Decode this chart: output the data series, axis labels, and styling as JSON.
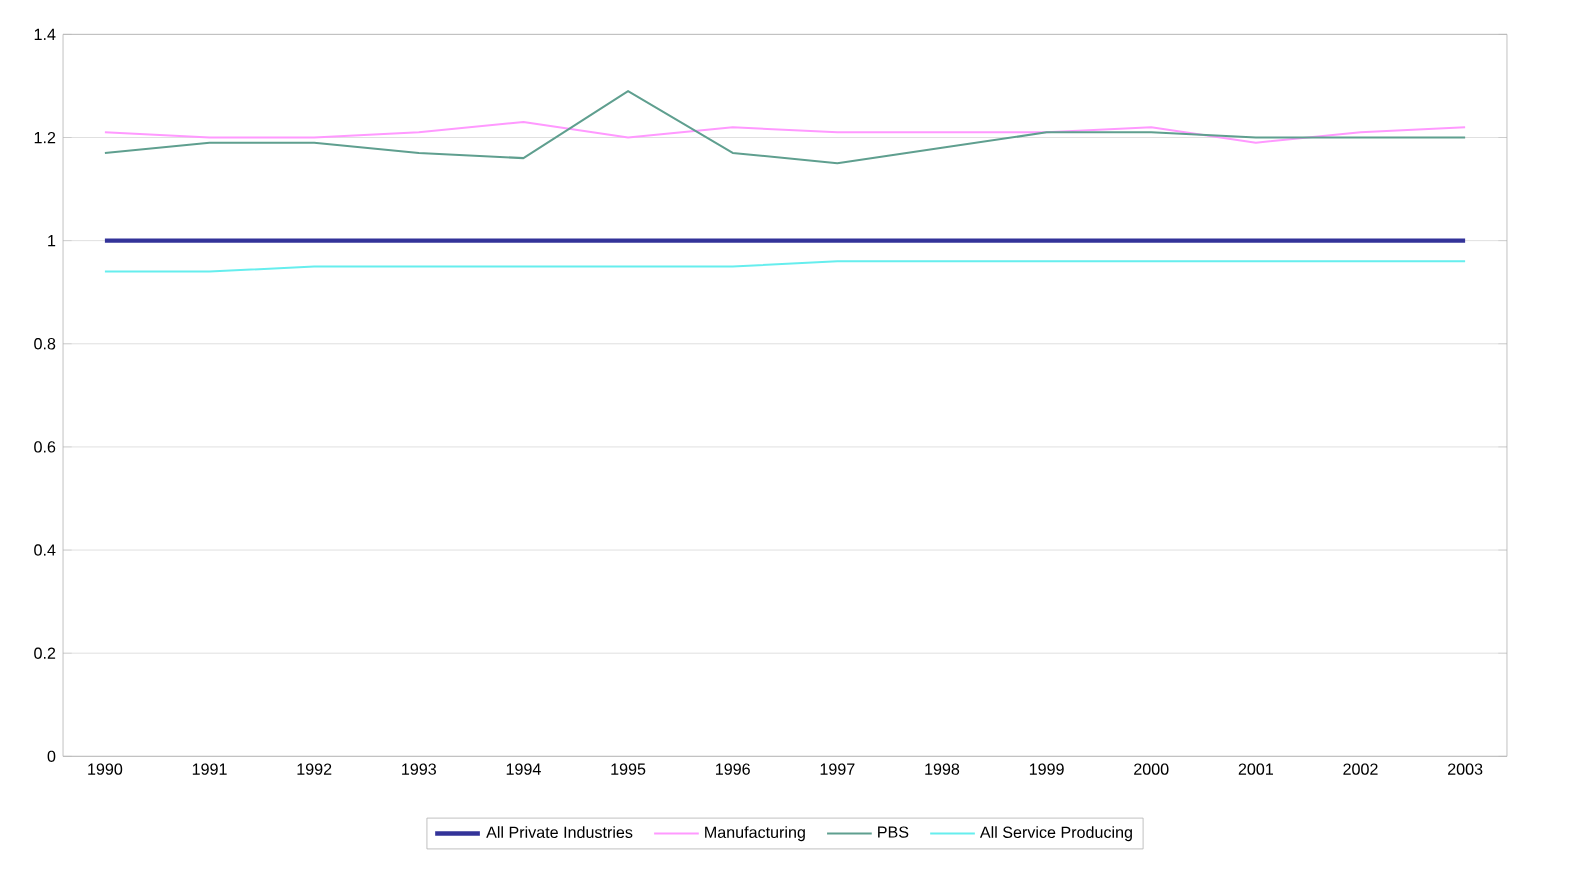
{
  "chart_data": {
    "type": "line",
    "categories": [
      "1990",
      "1991",
      "1992",
      "1993",
      "1994",
      "1995",
      "1996",
      "1997",
      "1998",
      "1999",
      "2000",
      "2001",
      "2002",
      "2003"
    ],
    "series": [
      {
        "name": "All Private Industries",
        "color": "#333399",
        "values": [
          1,
          1,
          1,
          1,
          1,
          1,
          1,
          1,
          1,
          1,
          1,
          1,
          1,
          1
        ]
      },
      {
        "name": "Manufacturing",
        "color": "#ff99ff",
        "values": [
          1.21,
          1.2,
          1.2,
          1.21,
          1.23,
          1.2,
          1.22,
          1.21,
          1.21,
          1.21,
          1.22,
          1.19,
          1.21,
          1.22
        ]
      },
      {
        "name": "PBS",
        "color": "#5f9f8f",
        "values": [
          1.17,
          1.19,
          1.19,
          1.17,
          1.16,
          1.29,
          1.17,
          1.15,
          1.18,
          1.21,
          1.21,
          1.2,
          1.2,
          1.2
        ]
      },
      {
        "name": "All Service Producing",
        "color": "#66eeee",
        "values": [
          0.94,
          0.94,
          0.95,
          0.95,
          0.95,
          0.95,
          0.95,
          0.96,
          0.96,
          0.96,
          0.96,
          0.96,
          0.96,
          0.96
        ]
      }
    ],
    "ylim": [
      0,
      1.4
    ],
    "yticks": [
      0,
      0.2,
      0.4,
      0.6,
      0.8,
      1,
      1.2,
      1.4
    ],
    "grid": "y",
    "legend": "bottom",
    "marker": "none",
    "line_style": "solid"
  }
}
